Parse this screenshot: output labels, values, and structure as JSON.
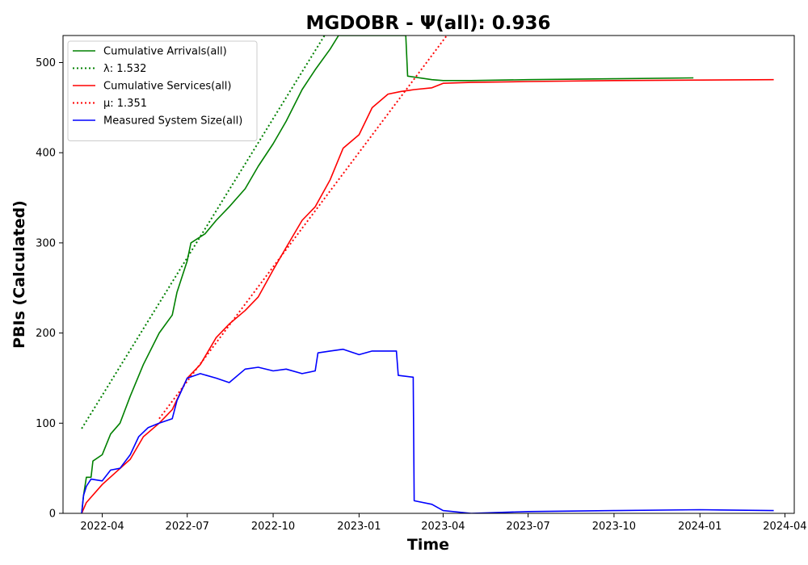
{
  "chart_data": {
    "type": "line",
    "title": "MGDOBR -  Ψ(all): 0.936",
    "xlabel": "Time",
    "ylabel": "PBIs (Calculated)",
    "xlim": [
      "2022-02-18",
      "2024-04-11"
    ],
    "ylim": [
      0,
      530
    ],
    "x_ticks": [
      "2022-04-01",
      "2022-07-01",
      "2022-10-01",
      "2023-01-01",
      "2023-04-01",
      "2023-07-01",
      "2023-10-01",
      "2024-01-01",
      "2024-04-01"
    ],
    "x_tick_labels": [
      "2022-04",
      "2022-07",
      "2022-10",
      "2023-01",
      "2023-04",
      "2023-07",
      "2023-10",
      "2024-01",
      "2024-04"
    ],
    "y_ticks": [
      0,
      100,
      200,
      300,
      400,
      500
    ],
    "grid": false,
    "legend_position": "upper-left",
    "series": [
      {
        "name": "Cumulative Arrivals(all)",
        "color": "#008000",
        "style": "solid",
        "points": [
          [
            "2022-03-10",
            0
          ],
          [
            "2022-03-12",
            20
          ],
          [
            "2022-03-15",
            40
          ],
          [
            "2022-03-20",
            40
          ],
          [
            "2022-03-22",
            58
          ],
          [
            "2022-04-01",
            65
          ],
          [
            "2022-04-10",
            88
          ],
          [
            "2022-04-20",
            100
          ],
          [
            "2022-05-01",
            130
          ],
          [
            "2022-05-15",
            165
          ],
          [
            "2022-06-01",
            200
          ],
          [
            "2022-06-15",
            220
          ],
          [
            "2022-06-20",
            245
          ],
          [
            "2022-07-01",
            280
          ],
          [
            "2022-07-05",
            300
          ],
          [
            "2022-07-20",
            310
          ],
          [
            "2022-08-01",
            325
          ],
          [
            "2022-08-15",
            340
          ],
          [
            "2022-09-01",
            360
          ],
          [
            "2022-09-15",
            385
          ],
          [
            "2022-10-01",
            410
          ],
          [
            "2022-10-15",
            435
          ],
          [
            "2022-11-01",
            470
          ],
          [
            "2022-11-15",
            492
          ],
          [
            "2022-12-01",
            515
          ],
          [
            "2022-12-10",
            530
          ],
          [
            "2023-02-20",
            530
          ],
          [
            "2023-02-22",
            485
          ],
          [
            "2023-03-20",
            481
          ],
          [
            "2023-04-01",
            480
          ],
          [
            "2023-05-01",
            480
          ],
          [
            "2023-07-01",
            481
          ],
          [
            "2023-10-01",
            482
          ],
          [
            "2023-12-25",
            483
          ]
        ]
      },
      {
        "name": "λ: 1.532",
        "color": "#008000",
        "style": "dotted",
        "points": [
          [
            "2022-03-10",
            94
          ],
          [
            "2022-11-25",
            530
          ]
        ]
      },
      {
        "name": "Cumulative Services(all)",
        "color": "#ff0000",
        "style": "solid",
        "points": [
          [
            "2022-03-10",
            0
          ],
          [
            "2022-03-15",
            12
          ],
          [
            "2022-04-01",
            32
          ],
          [
            "2022-04-15",
            45
          ],
          [
            "2022-05-01",
            60
          ],
          [
            "2022-05-15",
            85
          ],
          [
            "2022-06-01",
            100
          ],
          [
            "2022-06-15",
            115
          ],
          [
            "2022-07-01",
            150
          ],
          [
            "2022-07-15",
            165
          ],
          [
            "2022-08-01",
            195
          ],
          [
            "2022-08-15",
            210
          ],
          [
            "2022-09-01",
            225
          ],
          [
            "2022-09-15",
            240
          ],
          [
            "2022-10-01",
            270
          ],
          [
            "2022-10-15",
            295
          ],
          [
            "2022-11-01",
            325
          ],
          [
            "2022-11-15",
            340
          ],
          [
            "2022-12-01",
            370
          ],
          [
            "2022-12-15",
            405
          ],
          [
            "2023-01-01",
            420
          ],
          [
            "2023-01-15",
            450
          ],
          [
            "2023-02-01",
            465
          ],
          [
            "2023-02-15",
            468
          ],
          [
            "2023-03-01",
            470
          ],
          [
            "2023-03-20",
            472
          ],
          [
            "2023-04-01",
            477
          ],
          [
            "2023-05-01",
            478
          ],
          [
            "2023-07-01",
            479
          ],
          [
            "2023-10-01",
            480
          ],
          [
            "2024-03-20",
            481
          ]
        ]
      },
      {
        "name": "μ: 1.351",
        "color": "#ff0000",
        "style": "dotted",
        "points": [
          [
            "2022-06-01",
            105
          ],
          [
            "2023-04-05",
            530
          ]
        ]
      },
      {
        "name": "Measured System Size(all)",
        "color": "#0000ff",
        "style": "solid",
        "points": [
          [
            "2022-03-10",
            0
          ],
          [
            "2022-03-12",
            20
          ],
          [
            "2022-03-15",
            30
          ],
          [
            "2022-03-20",
            38
          ],
          [
            "2022-04-01",
            36
          ],
          [
            "2022-04-10",
            48
          ],
          [
            "2022-04-20",
            50
          ],
          [
            "2022-05-01",
            65
          ],
          [
            "2022-05-10",
            85
          ],
          [
            "2022-05-20",
            95
          ],
          [
            "2022-06-01",
            100
          ],
          [
            "2022-06-15",
            105
          ],
          [
            "2022-06-20",
            125
          ],
          [
            "2022-07-01",
            150
          ],
          [
            "2022-07-15",
            155
          ],
          [
            "2022-08-01",
            150
          ],
          [
            "2022-08-15",
            145
          ],
          [
            "2022-09-01",
            160
          ],
          [
            "2022-09-15",
            162
          ],
          [
            "2022-10-01",
            158
          ],
          [
            "2022-10-15",
            160
          ],
          [
            "2022-11-01",
            155
          ],
          [
            "2022-11-15",
            158
          ],
          [
            "2022-11-18",
            178
          ],
          [
            "2022-12-01",
            180
          ],
          [
            "2022-12-15",
            182
          ],
          [
            "2023-01-01",
            176
          ],
          [
            "2023-01-15",
            180
          ],
          [
            "2023-02-10",
            180
          ],
          [
            "2023-02-12",
            153
          ],
          [
            "2023-02-28",
            151
          ],
          [
            "2023-03-01",
            14
          ],
          [
            "2023-03-20",
            10
          ],
          [
            "2023-04-01",
            3
          ],
          [
            "2023-05-01",
            0
          ],
          [
            "2023-07-01",
            2
          ],
          [
            "2023-10-01",
            3
          ],
          [
            "2024-01-01",
            4
          ],
          [
            "2024-03-20",
            3
          ]
        ]
      }
    ]
  }
}
